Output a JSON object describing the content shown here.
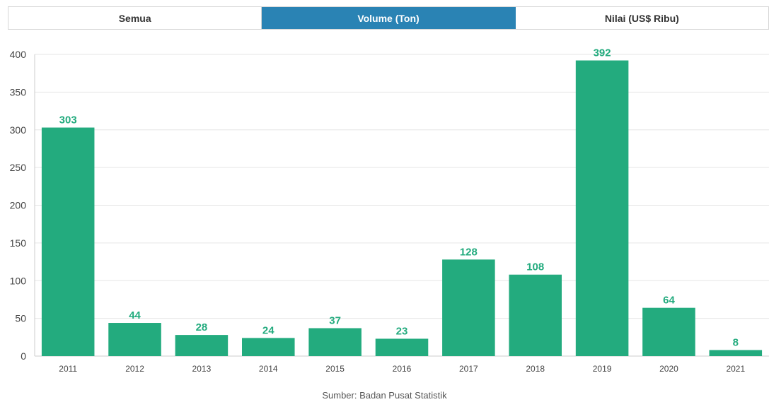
{
  "tabs": [
    {
      "label": "Semua",
      "active": false
    },
    {
      "label": "Volume (Ton)",
      "active": true
    },
    {
      "label": "Nilai (US$ Ribu)",
      "active": false
    }
  ],
  "source": "Sumber: Badan Pusat Statistik",
  "colors": {
    "bar": "#23ab7e",
    "label": "#23ab7e",
    "active_tab": "#2a83b4",
    "grid": "#e6e6e6"
  },
  "chart_data": {
    "type": "bar",
    "categories": [
      "2011",
      "2012",
      "2013",
      "2014",
      "2015",
      "2016",
      "2017",
      "2018",
      "2019",
      "2020",
      "2021"
    ],
    "values": [
      303,
      44,
      28,
      24,
      37,
      23,
      128,
      108,
      392,
      64,
      8
    ],
    "yticks": [
      0,
      50,
      100,
      150,
      200,
      250,
      300,
      350,
      400
    ],
    "ylim": [
      0,
      400
    ],
    "grid": true,
    "title": "",
    "xlabel": "",
    "ylabel": ""
  }
}
